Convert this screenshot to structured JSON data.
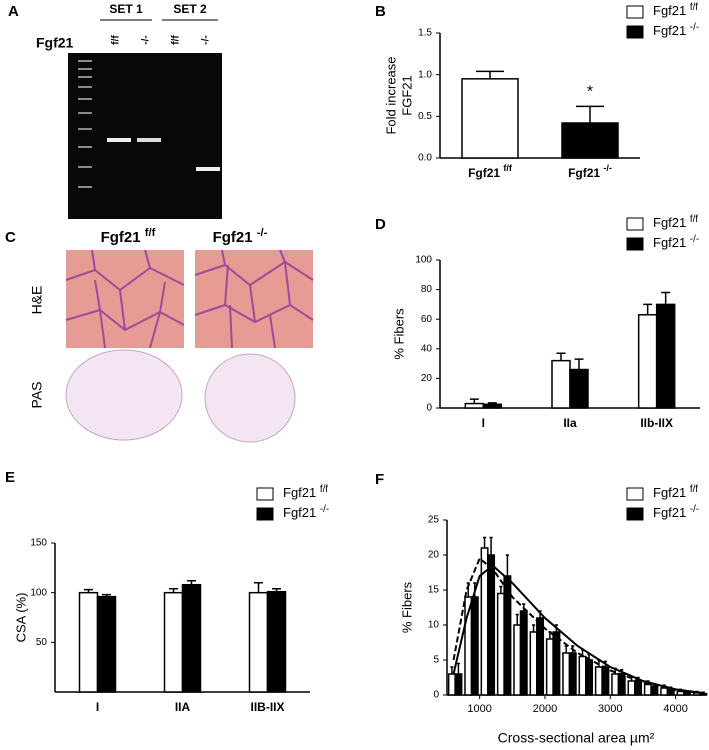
{
  "gel": {
    "panel": "A",
    "gene": "Fgf21",
    "sets": [
      "SET 1",
      "SET 2"
    ],
    "lanes": [
      "f/f",
      "-/-",
      "f/f",
      "-/-"
    ]
  },
  "histology": {
    "panel": "C",
    "columns": [
      "Fgf21 f/f",
      "Fgf21 -/-"
    ],
    "rows": [
      "H&E",
      "PAS"
    ]
  },
  "chart_data": [
    {
      "panel": "B",
      "type": "bar",
      "ylabel": [
        "Fold increase",
        "FGF21"
      ],
      "categories": [
        "Fgf21 f/f",
        "Fgf21 -/-"
      ],
      "series": [
        {
          "name": "Fgf21 f/f",
          "color": "#ffffff",
          "values": [
            0.95,
            null
          ],
          "errors": [
            0.09,
            null
          ]
        },
        {
          "name": "Fgf21 -/-",
          "color": "#000000",
          "values": [
            null,
            0.42
          ],
          "errors": [
            null,
            0.2
          ]
        }
      ],
      "annotation": "*",
      "ylim": [
        0,
        1.5
      ],
      "yticks": [
        {
          "value": 0,
          "label": "0.0"
        },
        0.5,
        {
          "value": 1,
          "label": "1.0"
        },
        1.5
      ]
    },
    {
      "panel": "D",
      "type": "bar",
      "ylabel": [
        "% Fibers"
      ],
      "categories": [
        "I",
        "IIa",
        "IIb-IIX"
      ],
      "series": [
        {
          "name": "Fgf21 f/f",
          "color": "#ffffff",
          "values": [
            3,
            32,
            63
          ],
          "errors": [
            3,
            5,
            7
          ]
        },
        {
          "name": "Fgf21 -/-",
          "color": "#000000",
          "values": [
            2.5,
            26,
            70
          ],
          "errors": [
            1,
            7,
            8
          ]
        }
      ],
      "ylim": [
        0,
        100
      ],
      "yticks": [
        0,
        20,
        40,
        60,
        80,
        100
      ]
    },
    {
      "panel": "E",
      "type": "bar",
      "ylabel": [
        "CSA (%)"
      ],
      "categories": [
        "I",
        "IIA",
        "IIB-IIX"
      ],
      "series": [
        {
          "name": "Fgf21 f/f",
          "color": "#ffffff",
          "values": [
            100,
            100,
            100
          ],
          "errors": [
            3,
            4,
            10
          ]
        },
        {
          "name": "Fgf21 -/-",
          "color": "#000000",
          "values": [
            96,
            108,
            101
          ],
          "errors": [
            2,
            4,
            3
          ]
        }
      ],
      "ylim": [
        0,
        150
      ],
      "yticks": [
        50,
        100,
        150
      ]
    },
    {
      "panel": "F",
      "type": "bar",
      "ylabel": [
        "% Fibers"
      ],
      "xlabel": "Cross-sectional area µm²",
      "x": [
        625,
        875,
        1125,
        1375,
        1625,
        1875,
        2125,
        2375,
        2625,
        2875,
        3125,
        3375,
        3625,
        3875,
        4125,
        4375
      ],
      "series": [
        {
          "name": "Fgf21 f/f",
          "color": "#ffffff",
          "values": [
            3,
            14,
            21,
            14.5,
            10,
            9,
            8,
            6,
            5.5,
            4,
            3,
            2,
            1.5,
            1,
            0.5,
            0.3
          ],
          "errors": [
            1,
            2,
            1.5,
            1,
            1.5,
            1,
            1,
            1,
            1,
            1,
            0.8,
            0.6,
            0.5,
            0.4,
            0.3,
            0.2
          ]
        },
        {
          "name": "Fgf21 -/-",
          "color": "#000000",
          "values": [
            3,
            14,
            20,
            17,
            12,
            11,
            9,
            6,
            5,
            4,
            3,
            2,
            1.2,
            0.8,
            0.4,
            0.2
          ],
          "errors": [
            1.5,
            2,
            2.5,
            3,
            1,
            1,
            1,
            1,
            0.8,
            0.8,
            0.6,
            0.5,
            0.4,
            0.3,
            0.2,
            0.2
          ]
        }
      ],
      "fits": [
        {
          "dash": false,
          "x": [
            600,
            800,
            1000,
            1200,
            1500,
            2000,
            2500,
            3000,
            3500,
            4000,
            4400
          ],
          "values": [
            3,
            11,
            17,
            18.5,
            16,
            11,
            7,
            4,
            2,
            0.8,
            0.3
          ]
        },
        {
          "dash": true,
          "x": [
            600,
            800,
            1000,
            1200,
            1500,
            2000,
            2500,
            3000,
            3500,
            4000,
            4400
          ],
          "values": [
            5,
            15,
            19.5,
            18,
            14,
            9.5,
            6,
            3.5,
            1.8,
            0.7,
            0.3
          ]
        }
      ],
      "xlim": [
        500,
        4450
      ],
      "xticks": [
        1000,
        2000,
        3000,
        4000
      ],
      "ylim": [
        0,
        25
      ],
      "yticks": [
        0,
        5,
        10,
        15,
        20,
        25
      ]
    }
  ]
}
